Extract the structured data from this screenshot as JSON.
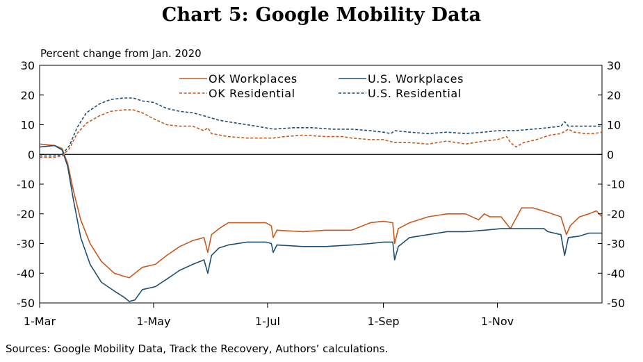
{
  "chart_data": {
    "type": "line",
    "title": "Chart 5: Google Mobility Data",
    "ylabel": "Percent change from Jan. 2020",
    "source": "Sources: Google Mobility Data, Track the Recovery, Authors’ calculations.",
    "ylim": [
      -50,
      30
    ],
    "yticks": [
      30,
      20,
      10,
      0,
      -10,
      -20,
      -30,
      -40,
      -50
    ],
    "ytick_labels": [
      "30",
      "20",
      "10",
      "0",
      "-10",
      "-20",
      "-30",
      "-40",
      "-50"
    ],
    "x_start": "2020-03-01",
    "x_end": "2020-12-27",
    "xticks": [
      {
        "date": "2020-03-01",
        "label": "1-Mar"
      },
      {
        "date": "2020-05-01",
        "label": "1-May"
      },
      {
        "date": "2020-07-01",
        "label": "1-Jul"
      },
      {
        "date": "2020-09-01",
        "label": "1-Sep"
      },
      {
        "date": "2020-11-01",
        "label": "1-Nov"
      }
    ],
    "grid": false,
    "legend_position": "top",
    "series": [
      {
        "name": "OK Workplaces",
        "color": "#c65a1e",
        "dash": "solid",
        "points": [
          [
            "2020-03-01",
            3.5
          ],
          [
            "2020-03-09",
            3
          ],
          [
            "2020-03-13",
            2
          ],
          [
            "2020-03-16",
            -3
          ],
          [
            "2020-03-19",
            -12
          ],
          [
            "2020-03-23",
            -22
          ],
          [
            "2020-03-28",
            -30
          ],
          [
            "2020-04-03",
            -36
          ],
          [
            "2020-04-10",
            -40
          ],
          [
            "2020-04-15",
            -41
          ],
          [
            "2020-04-18",
            -41.5
          ],
          [
            "2020-04-21",
            -40
          ],
          [
            "2020-04-25",
            -38
          ],
          [
            "2020-05-02",
            -37
          ],
          [
            "2020-05-08",
            -34
          ],
          [
            "2020-05-15",
            -31
          ],
          [
            "2020-05-22",
            -29
          ],
          [
            "2020-05-28",
            -28
          ],
          [
            "2020-05-30",
            -33
          ],
          [
            "2020-06-01",
            -27
          ],
          [
            "2020-06-05",
            -25
          ],
          [
            "2020-06-10",
            -23
          ],
          [
            "2020-06-20",
            -23
          ],
          [
            "2020-06-30",
            -23
          ],
          [
            "2020-07-03",
            -24
          ],
          [
            "2020-07-04",
            -28
          ],
          [
            "2020-07-06",
            -25.5
          ],
          [
            "2020-07-20",
            -26
          ],
          [
            "2020-08-01",
            -25.5
          ],
          [
            "2020-08-15",
            -25.5
          ],
          [
            "2020-08-25",
            -23
          ],
          [
            "2020-09-01",
            -22.5
          ],
          [
            "2020-09-06",
            -23
          ],
          [
            "2020-09-07",
            -30
          ],
          [
            "2020-09-09",
            -25
          ],
          [
            "2020-09-15",
            -23
          ],
          [
            "2020-09-25",
            -21
          ],
          [
            "2020-10-05",
            -20
          ],
          [
            "2020-10-15",
            -20
          ],
          [
            "2020-10-22",
            -22
          ],
          [
            "2020-10-25",
            -20
          ],
          [
            "2020-10-28",
            -21
          ],
          [
            "2020-11-03",
            -21
          ],
          [
            "2020-11-08",
            -25
          ],
          [
            "2020-11-14",
            -18
          ],
          [
            "2020-11-20",
            -18
          ],
          [
            "2020-11-28",
            -19.5
          ],
          [
            "2020-12-05",
            -21
          ],
          [
            "2020-12-08",
            -27
          ],
          [
            "2020-12-10",
            -24
          ],
          [
            "2020-12-15",
            -21
          ],
          [
            "2020-12-20",
            -20
          ],
          [
            "2020-12-24",
            -19
          ],
          [
            "2020-12-27",
            -21
          ]
        ]
      },
      {
        "name": "U.S. Workplaces",
        "color": "#1d4e73",
        "dash": "solid",
        "points": [
          [
            "2020-03-01",
            2.5
          ],
          [
            "2020-03-09",
            3
          ],
          [
            "2020-03-13",
            1.5
          ],
          [
            "2020-03-16",
            -4
          ],
          [
            "2020-03-19",
            -15
          ],
          [
            "2020-03-23",
            -28
          ],
          [
            "2020-03-28",
            -37
          ],
          [
            "2020-04-03",
            -43
          ],
          [
            "2020-04-10",
            -46
          ],
          [
            "2020-04-15",
            -48
          ],
          [
            "2020-04-18",
            -49.5
          ],
          [
            "2020-04-21",
            -49
          ],
          [
            "2020-04-25",
            -45.5
          ],
          [
            "2020-05-02",
            -44.5
          ],
          [
            "2020-05-08",
            -42
          ],
          [
            "2020-05-15",
            -39
          ],
          [
            "2020-05-22",
            -37
          ],
          [
            "2020-05-28",
            -35.5
          ],
          [
            "2020-05-30",
            -40
          ],
          [
            "2020-06-01",
            -34
          ],
          [
            "2020-06-05",
            -31.5
          ],
          [
            "2020-06-10",
            -30.5
          ],
          [
            "2020-06-20",
            -29.5
          ],
          [
            "2020-06-30",
            -29.5
          ],
          [
            "2020-07-03",
            -30
          ],
          [
            "2020-07-04",
            -33
          ],
          [
            "2020-07-06",
            -30.5
          ],
          [
            "2020-07-20",
            -31
          ],
          [
            "2020-08-01",
            -31
          ],
          [
            "2020-08-15",
            -30.5
          ],
          [
            "2020-08-25",
            -30
          ],
          [
            "2020-09-01",
            -29.5
          ],
          [
            "2020-09-06",
            -29.5
          ],
          [
            "2020-09-07",
            -35.5
          ],
          [
            "2020-09-09",
            -31
          ],
          [
            "2020-09-15",
            -28
          ],
          [
            "2020-09-25",
            -27
          ],
          [
            "2020-10-05",
            -26
          ],
          [
            "2020-10-15",
            -26
          ],
          [
            "2020-10-25",
            -25.5
          ],
          [
            "2020-11-03",
            -25
          ],
          [
            "2020-11-14",
            -25
          ],
          [
            "2020-11-26",
            -25
          ],
          [
            "2020-11-28",
            -26
          ],
          [
            "2020-12-05",
            -27
          ],
          [
            "2020-12-07",
            -34
          ],
          [
            "2020-12-09",
            -28
          ],
          [
            "2020-12-15",
            -27.5
          ],
          [
            "2020-12-20",
            -26.5
          ],
          [
            "2020-12-27",
            -26.5
          ]
        ]
      },
      {
        "name": "OK Residential",
        "color": "#c65a1e",
        "dash": "dashed",
        "points": [
          [
            "2020-03-01",
            -1
          ],
          [
            "2020-03-09",
            -1
          ],
          [
            "2020-03-13",
            -0.5
          ],
          [
            "2020-03-17",
            2
          ],
          [
            "2020-03-21",
            7
          ],
          [
            "2020-03-26",
            10.5
          ],
          [
            "2020-04-02",
            13
          ],
          [
            "2020-04-08",
            14.5
          ],
          [
            "2020-04-15",
            15
          ],
          [
            "2020-04-20",
            15
          ],
          [
            "2020-04-25",
            14
          ],
          [
            "2020-05-01",
            12
          ],
          [
            "2020-05-08",
            10
          ],
          [
            "2020-05-15",
            9.5
          ],
          [
            "2020-05-22",
            9.5
          ],
          [
            "2020-05-28",
            8
          ],
          [
            "2020-05-30",
            9
          ],
          [
            "2020-06-01",
            7
          ],
          [
            "2020-06-10",
            6
          ],
          [
            "2020-06-20",
            5.5
          ],
          [
            "2020-06-30",
            5.5
          ],
          [
            "2020-07-04",
            5.5
          ],
          [
            "2020-07-10",
            6
          ],
          [
            "2020-07-20",
            6.5
          ],
          [
            "2020-08-01",
            6
          ],
          [
            "2020-08-10",
            6
          ],
          [
            "2020-08-15",
            5.5
          ],
          [
            "2020-08-25",
            5
          ],
          [
            "2020-09-01",
            5
          ],
          [
            "2020-09-07",
            4
          ],
          [
            "2020-09-15",
            4
          ],
          [
            "2020-09-25",
            3.5
          ],
          [
            "2020-10-05",
            4.5
          ],
          [
            "2020-10-15",
            3.5
          ],
          [
            "2020-10-25",
            4.5
          ],
          [
            "2020-11-01",
            5
          ],
          [
            "2020-11-06",
            6
          ],
          [
            "2020-11-08",
            4
          ],
          [
            "2020-11-11",
            2.5
          ],
          [
            "2020-11-15",
            4
          ],
          [
            "2020-11-22",
            5
          ],
          [
            "2020-11-29",
            6.5
          ],
          [
            "2020-12-05",
            7
          ],
          [
            "2020-12-09",
            8.5
          ],
          [
            "2020-12-12",
            7.5
          ],
          [
            "2020-12-18",
            7
          ],
          [
            "2020-12-23",
            7
          ],
          [
            "2020-12-27",
            7.5
          ]
        ]
      },
      {
        "name": "U.S. Residential",
        "color": "#1d4e73",
        "dash": "dashed",
        "points": [
          [
            "2020-03-01",
            -0.5
          ],
          [
            "2020-03-09",
            -0.5
          ],
          [
            "2020-03-13",
            0
          ],
          [
            "2020-03-17",
            3
          ],
          [
            "2020-03-21",
            9
          ],
          [
            "2020-03-26",
            14
          ],
          [
            "2020-04-02",
            17
          ],
          [
            "2020-04-08",
            18.5
          ],
          [
            "2020-04-15",
            19
          ],
          [
            "2020-04-20",
            19
          ],
          [
            "2020-04-25",
            18
          ],
          [
            "2020-05-01",
            17.5
          ],
          [
            "2020-05-08",
            15.5
          ],
          [
            "2020-05-15",
            14.5
          ],
          [
            "2020-05-22",
            14
          ],
          [
            "2020-05-28",
            13
          ],
          [
            "2020-06-05",
            11.5
          ],
          [
            "2020-06-15",
            10.5
          ],
          [
            "2020-06-25",
            9.5
          ],
          [
            "2020-07-04",
            8.5
          ],
          [
            "2020-07-15",
            9
          ],
          [
            "2020-07-25",
            9
          ],
          [
            "2020-08-05",
            8.5
          ],
          [
            "2020-08-15",
            8.5
          ],
          [
            "2020-08-25",
            8
          ],
          [
            "2020-09-01",
            7.5
          ],
          [
            "2020-09-05",
            7
          ],
          [
            "2020-09-07",
            8
          ],
          [
            "2020-09-15",
            7.5
          ],
          [
            "2020-09-25",
            7
          ],
          [
            "2020-10-05",
            7.5
          ],
          [
            "2020-10-15",
            7
          ],
          [
            "2020-10-25",
            7.5
          ],
          [
            "2020-11-01",
            8
          ],
          [
            "2020-11-10",
            8
          ],
          [
            "2020-11-20",
            8.5
          ],
          [
            "2020-11-28",
            9
          ],
          [
            "2020-12-05",
            9.5
          ],
          [
            "2020-12-07",
            11
          ],
          [
            "2020-12-09",
            9.5
          ],
          [
            "2020-12-15",
            9.5
          ],
          [
            "2020-12-20",
            9.5
          ],
          [
            "2020-12-27",
            9.5
          ]
        ]
      }
    ]
  }
}
